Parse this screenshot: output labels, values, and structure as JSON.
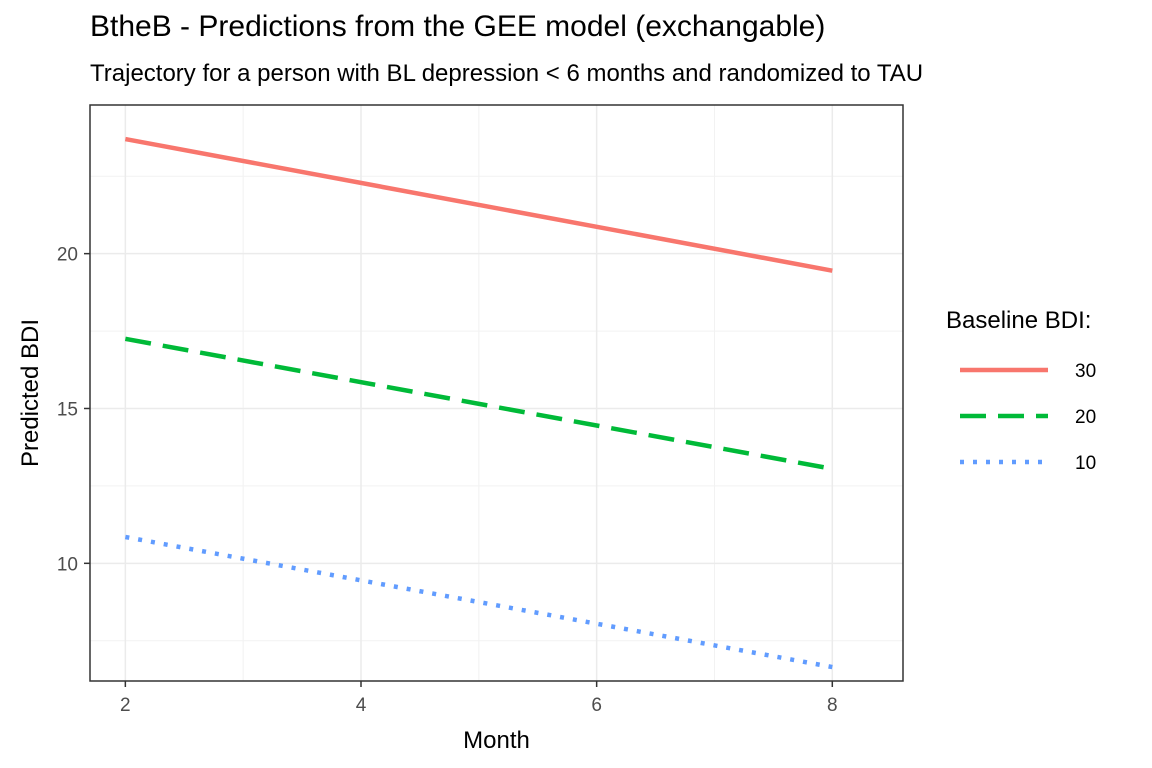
{
  "chart_data": {
    "type": "line",
    "title": "BtheB - Predictions from the GEE model (exchangable)",
    "subtitle": "Trajectory for a person with BL depression < 6 months and randomized to TAU",
    "xlabel": "Month",
    "ylabel": "Predicted BDI",
    "xlim": [
      1.7,
      8.6
    ],
    "ylim": [
      6.2,
      24.8
    ],
    "x_ticks": [
      2,
      4,
      6,
      8
    ],
    "y_ticks": [
      10,
      15,
      20
    ],
    "x": [
      2,
      8
    ],
    "grid": true,
    "legend": {
      "title": "Baseline BDI:",
      "placement": "right"
    },
    "series": [
      {
        "name": "30",
        "values": [
          23.7,
          19.45
        ],
        "color": "#F8766D",
        "linetype": "solid"
      },
      {
        "name": "20",
        "values": [
          17.25,
          13.05
        ],
        "color": "#00BA38",
        "linetype": "dashed"
      },
      {
        "name": "10",
        "values": [
          10.85,
          6.65
        ],
        "color": "#619CFF",
        "linetype": "dotted"
      }
    ]
  }
}
